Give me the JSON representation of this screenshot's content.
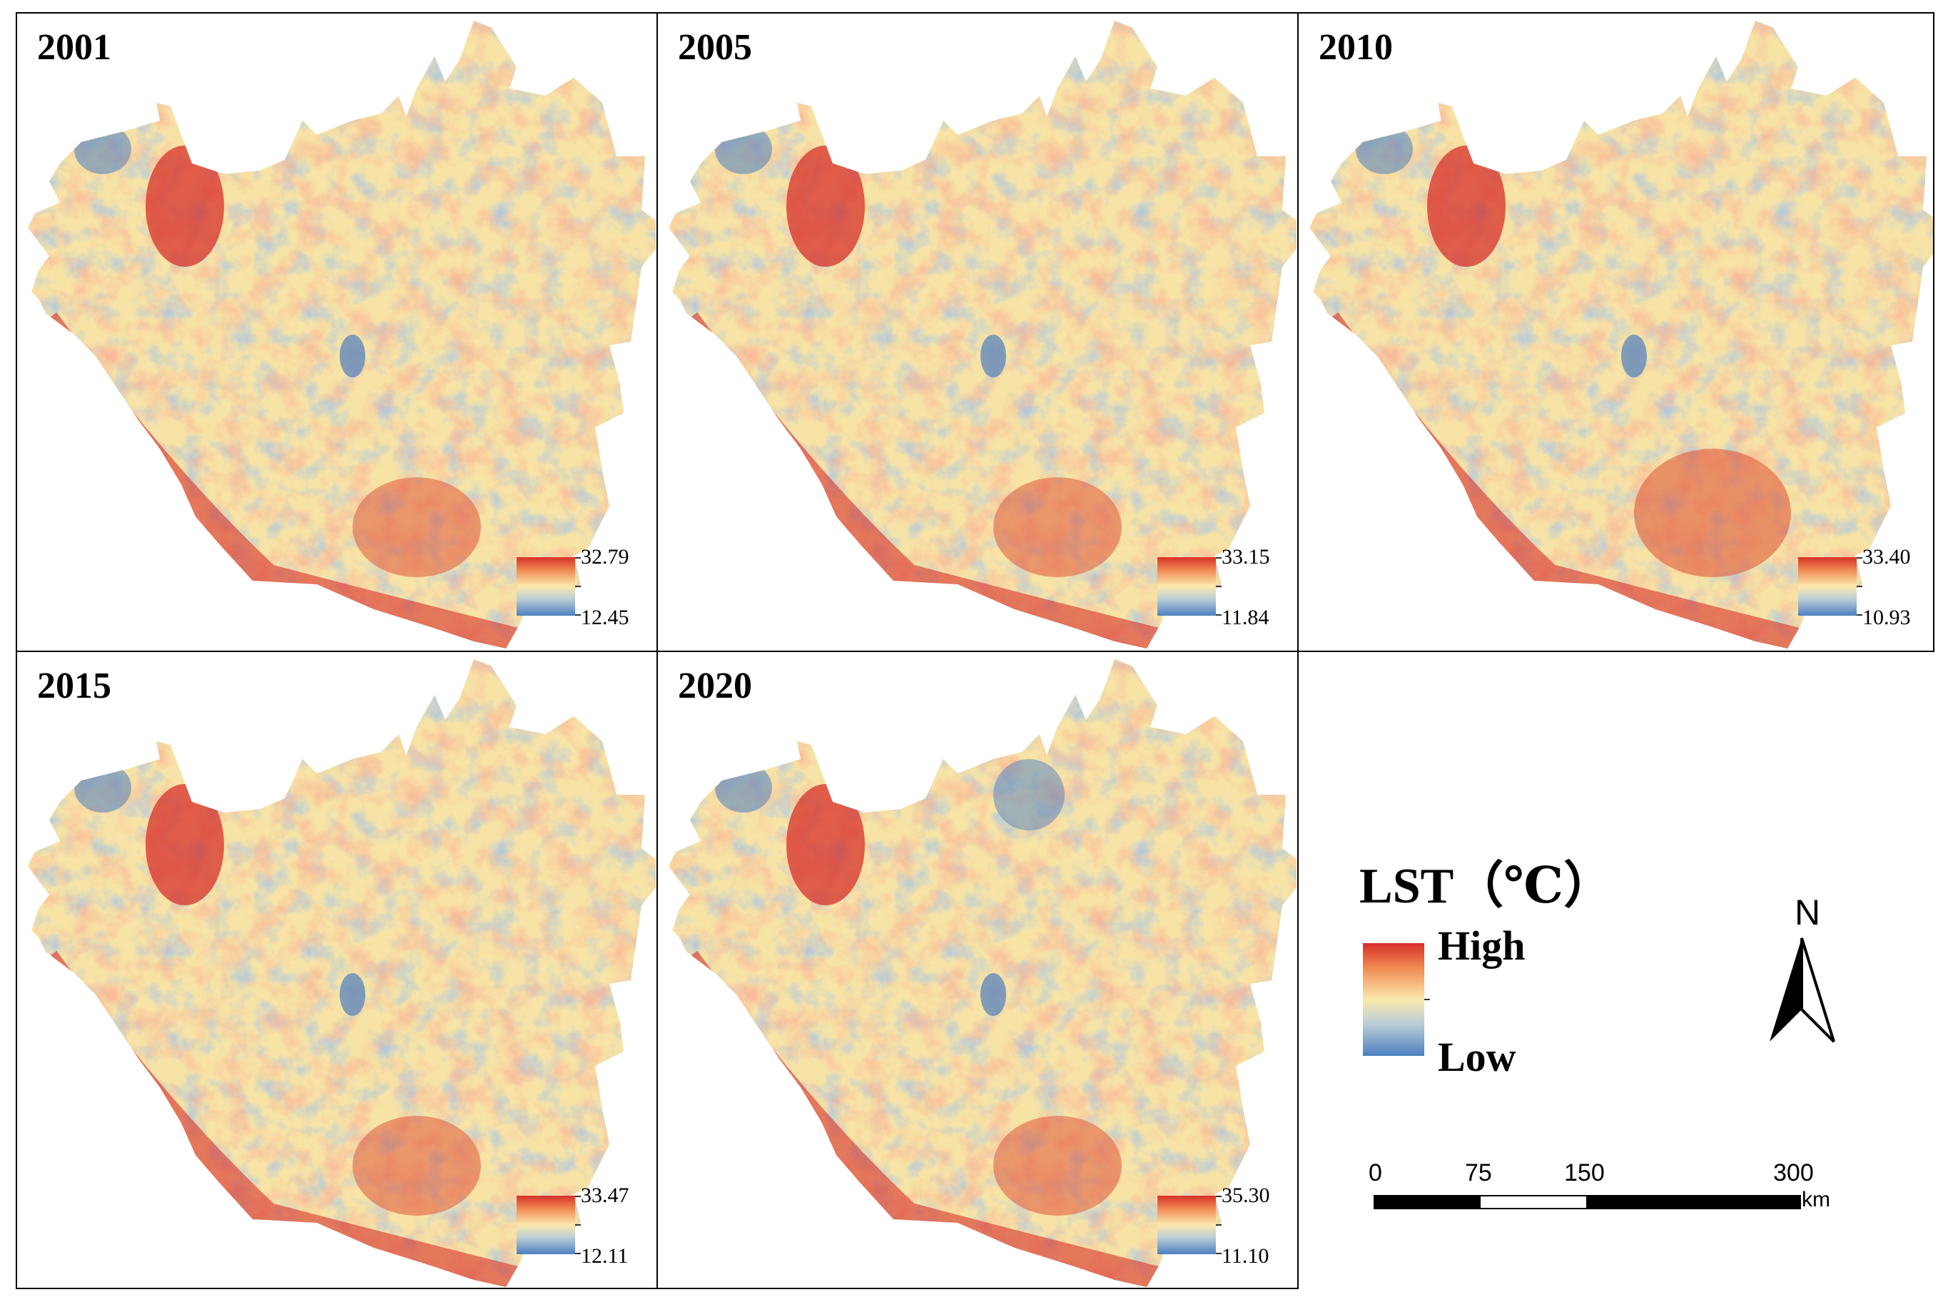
{
  "panels": [
    {
      "year": "2001",
      "max": "32.79",
      "min": "12.45"
    },
    {
      "year": "2005",
      "max": "33.15",
      "min": "11.84"
    },
    {
      "year": "2010",
      "max": "33.40",
      "min": "10.93"
    },
    {
      "year": "2015",
      "max": "33.47",
      "min": "12.11"
    },
    {
      "year": "2020",
      "max": "35.30",
      "min": "11.10"
    }
  ],
  "legend": {
    "title": "LST（℃）",
    "high": "High",
    "low": "Low",
    "colors": [
      "#d7302a",
      "#f08a52",
      "#fbe9ad",
      "#b9cdd6",
      "#4d7fc0"
    ]
  },
  "north_arrow": {
    "label": "N"
  },
  "scale_bar": {
    "labels": [
      "0",
      "75",
      "150",
      "300"
    ],
    "unit": "km"
  }
}
